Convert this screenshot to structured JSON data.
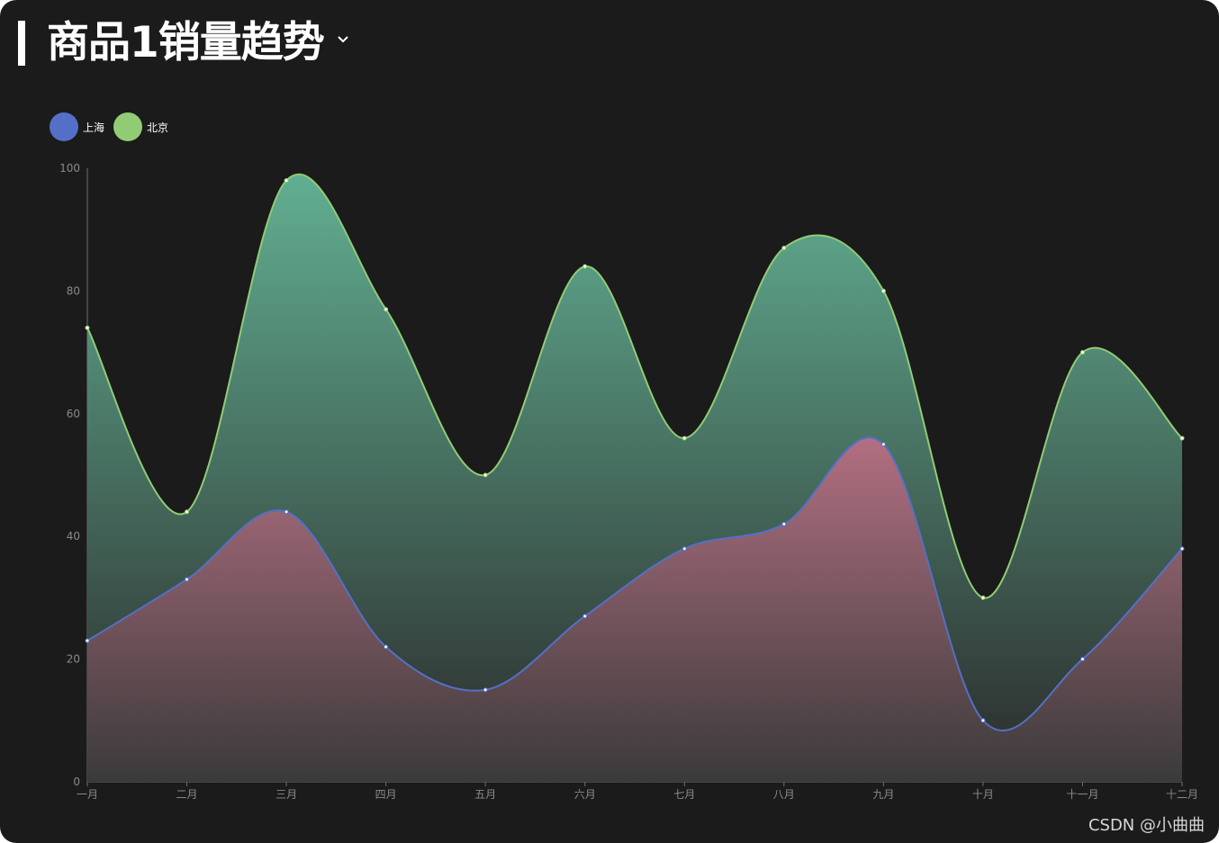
{
  "chart_data": {
    "type": "area",
    "title": "商品1销量趋势",
    "categories": [
      "一月",
      "二月",
      "三月",
      "四月",
      "五月",
      "六月",
      "七月",
      "八月",
      "九月",
      "十月",
      "十一月",
      "十二月"
    ],
    "series": [
      {
        "name": "上海",
        "values": [
          23,
          33,
          44,
          22,
          15,
          27,
          38,
          42,
          55,
          10,
          20,
          38
        ],
        "color": "#5470c6",
        "fill_top": "#b76f83",
        "fill_bottom": "#3b3b3b"
      },
      {
        "name": "北京",
        "values": [
          74,
          44,
          98,
          77,
          50,
          84,
          56,
          87,
          80,
          30,
          70,
          56
        ],
        "color": "#91cc75",
        "fill_top": "#65b698",
        "fill_bottom": "#2b2b2b"
      }
    ],
    "ylim": [
      0,
      100
    ],
    "yticks": [
      "0",
      "20",
      "40",
      "60",
      "80",
      "100"
    ],
    "smooth": true,
    "grid": false,
    "legend_position": "top-left"
  },
  "watermark": "CSDN @小曲曲"
}
